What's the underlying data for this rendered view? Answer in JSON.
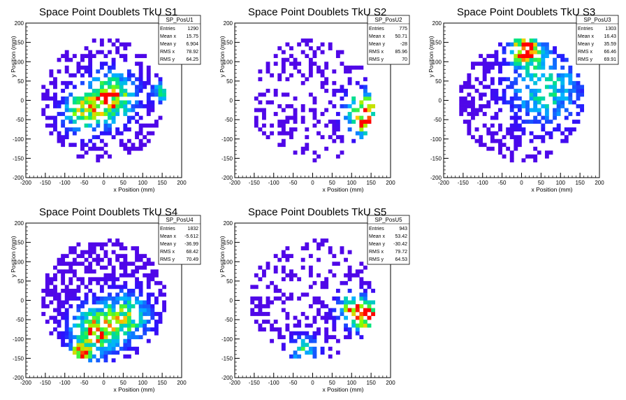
{
  "figure": {
    "panels": [
      {
        "title": "Space Point Doublets TkU S1",
        "stats": {
          "name": "SP_PosU1",
          "rows": [
            [
              "Entries",
              "1290"
            ],
            [
              "Mean x",
              "15.75"
            ],
            [
              "Mean y",
              "6.904"
            ],
            [
              "RMS x",
              "78.92"
            ],
            [
              "RMS y",
              "64.25"
            ]
          ]
        }
      },
      {
        "title": "Space Point Doublets TkU S2",
        "stats": {
          "name": "SP_PosU2",
          "rows": [
            [
              "Entries",
              "775"
            ],
            [
              "Mean x",
              "50.71"
            ],
            [
              "Mean y",
              "-28"
            ],
            [
              "RMS x",
              "85.96"
            ],
            [
              "RMS y",
              "70"
            ]
          ]
        }
      },
      {
        "title": "Space Point Doublets TkU S3",
        "stats": {
          "name": "SP_PosU3",
          "rows": [
            [
              "Entries",
              "1303"
            ],
            [
              "Mean x",
              "16.43"
            ],
            [
              "Mean y",
              "35.59"
            ],
            [
              "RMS x",
              "66.46"
            ],
            [
              "RMS y",
              "69.91"
            ]
          ]
        }
      },
      {
        "title": "Space Point Doublets TkU S4",
        "stats": {
          "name": "SP_PosU4",
          "rows": [
            [
              "Entries",
              "1832"
            ],
            [
              "Mean x",
              "-5.612"
            ],
            [
              "Mean y",
              "-36.99"
            ],
            [
              "RMS x",
              "68.42"
            ],
            [
              "RMS y",
              "70.49"
            ]
          ]
        }
      },
      {
        "title": "Space Point Doublets TkU S5",
        "stats": {
          "name": "SP_PosU5",
          "rows": [
            [
              "Entries",
              "943"
            ],
            [
              "Mean x",
              "53.42"
            ],
            [
              "Mean y",
              "-30.42"
            ],
            [
              "RMS x",
              "79.72"
            ],
            [
              "RMS y",
              "64.53"
            ]
          ]
        }
      }
    ]
  },
  "chart_data": [
    {
      "type": "heatmap",
      "title": "Space Point Doublets TkU S1",
      "xlabel": "x Position (mm)",
      "ylabel": "y Position (mm)",
      "xlim": [
        -200,
        200
      ],
      "ylim": [
        -200,
        200
      ],
      "xticks": [
        -200,
        -150,
        -100,
        -50,
        0,
        50,
        100,
        150,
        200
      ],
      "yticks": [
        -200,
        -150,
        -100,
        -50,
        0,
        50,
        100,
        150,
        200
      ],
      "bin_size": 10,
      "seed": 11,
      "fill": 0.52,
      "hot": [
        {
          "x": 20,
          "y": 10,
          "s": 40,
          "w": 1.0
        },
        {
          "x": -50,
          "y": -30,
          "s": 35,
          "w": 0.8
        },
        {
          "x": 150,
          "y": 20,
          "s": 18,
          "w": 0.6
        }
      ]
    },
    {
      "type": "heatmap",
      "title": "Space Point Doublets TkU S2",
      "xlabel": "x Position (mm)",
      "ylabel": "y Position (mm)",
      "xlim": [
        -200,
        200
      ],
      "ylim": [
        -200,
        200
      ],
      "xticks": [
        -200,
        -150,
        -100,
        -50,
        0,
        50,
        100,
        150,
        200
      ],
      "yticks": [
        -200,
        -150,
        -100,
        -50,
        0,
        50,
        100,
        150,
        200
      ],
      "bin_size": 10,
      "seed": 23,
      "fill": 0.32,
      "hot": [
        {
          "x": 130,
          "y": -20,
          "s": 30,
          "w": 1.0
        },
        {
          "x": 140,
          "y": -70,
          "s": 25,
          "w": 0.7
        }
      ]
    },
    {
      "type": "heatmap",
      "title": "Space Point Doublets TkU S3",
      "xlabel": "x Position (mm)",
      "ylabel": "y Position (mm)",
      "xlim": [
        -200,
        200
      ],
      "ylim": [
        -200,
        200
      ],
      "xticks": [
        -200,
        -150,
        -100,
        -50,
        0,
        50,
        100,
        150,
        200
      ],
      "yticks": [
        -200,
        -150,
        -100,
        -50,
        0,
        50,
        100,
        150,
        200
      ],
      "bin_size": 10,
      "seed": 37,
      "fill": 0.55,
      "hot": [
        {
          "x": 10,
          "y": 130,
          "s": 25,
          "w": 1.4
        },
        {
          "x": 60,
          "y": 30,
          "s": 60,
          "w": 0.6
        }
      ]
    },
    {
      "type": "heatmap",
      "title": "Space Point Doublets TkU S4",
      "xlabel": "x Position (mm)",
      "ylabel": "y Position (mm)",
      "xlim": [
        -200,
        200
      ],
      "ylim": [
        -200,
        200
      ],
      "xticks": [
        -200,
        -150,
        -100,
        -50,
        0,
        50,
        100,
        150,
        200
      ],
      "yticks": [
        -200,
        -150,
        -100,
        -50,
        0,
        50,
        100,
        150,
        200
      ],
      "bin_size": 10,
      "seed": 41,
      "fill": 0.68,
      "hot": [
        {
          "x": -20,
          "y": -80,
          "s": 40,
          "w": 1.0
        },
        {
          "x": 60,
          "y": -40,
          "s": 40,
          "w": 0.7
        },
        {
          "x": -60,
          "y": -140,
          "s": 20,
          "w": 0.8
        }
      ]
    },
    {
      "type": "heatmap",
      "title": "Space Point Doublets TkU S5",
      "xlabel": "x Position (mm)",
      "ylabel": "y Position (mm)",
      "xlim": [
        -200,
        200
      ],
      "ylim": [
        -200,
        200
      ],
      "xticks": [
        -200,
        -150,
        -100,
        -50,
        0,
        50,
        100,
        150,
        200
      ],
      "yticks": [
        -200,
        -150,
        -100,
        -50,
        0,
        50,
        100,
        150,
        200
      ],
      "bin_size": 10,
      "seed": 53,
      "fill": 0.38,
      "hot": [
        {
          "x": 140,
          "y": -40,
          "s": 25,
          "w": 1.2
        },
        {
          "x": 100,
          "y": -20,
          "s": 25,
          "w": 0.8
        },
        {
          "x": -20,
          "y": -130,
          "s": 25,
          "w": 0.6
        }
      ]
    }
  ]
}
